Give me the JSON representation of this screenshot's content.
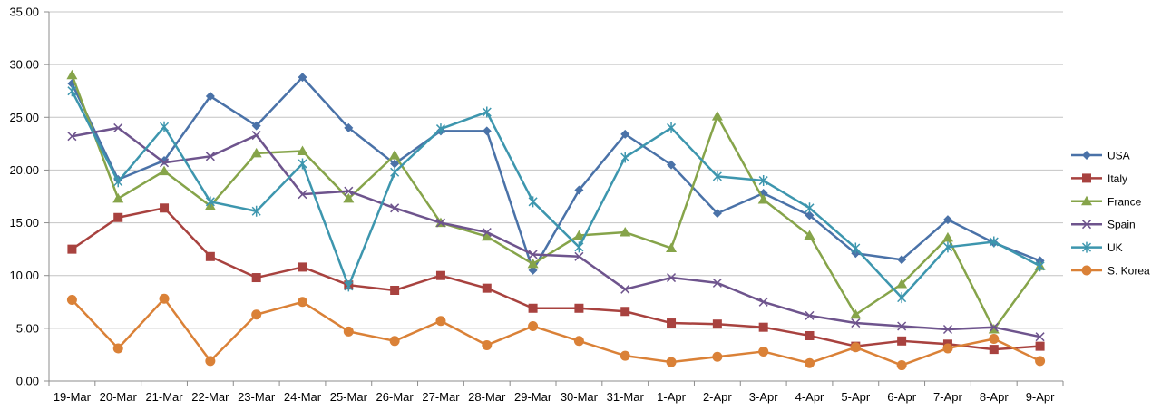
{
  "chart_data": {
    "type": "line",
    "title": "",
    "xlabel": "",
    "ylabel": "",
    "ylim": [
      0,
      35
    ],
    "y_ticks": [
      "0.00",
      "5.00",
      "10.00",
      "15.00",
      "20.00",
      "25.00",
      "30.00",
      "35.00"
    ],
    "grid": true,
    "legend_position": "right",
    "categories": [
      "19-Mar",
      "20-Mar",
      "21-Mar",
      "22-Mar",
      "23-Mar",
      "24-Mar",
      "25-Mar",
      "26-Mar",
      "27-Mar",
      "28-Mar",
      "29-Mar",
      "30-Mar",
      "31-Mar",
      "1-Apr",
      "2-Apr",
      "3-Apr",
      "4-Apr",
      "5-Apr",
      "6-Apr",
      "7-Apr",
      "8-Apr",
      "9-Apr"
    ],
    "series": [
      {
        "name": "USA",
        "color": "#4a72a8",
        "marker": "diamond",
        "values": [
          28.2,
          19.1,
          20.9,
          27.0,
          24.2,
          28.8,
          24.0,
          20.6,
          23.7,
          23.7,
          10.5,
          18.1,
          23.4,
          20.5,
          15.9,
          17.8,
          15.7,
          12.1,
          11.5,
          15.3,
          13.1,
          11.4
        ]
      },
      {
        "name": "Italy",
        "color": "#a8423f",
        "marker": "square",
        "values": [
          12.5,
          15.5,
          16.4,
          11.8,
          9.8,
          10.8,
          9.1,
          8.6,
          10.0,
          8.8,
          6.9,
          6.9,
          6.6,
          5.5,
          5.4,
          5.1,
          4.3,
          3.3,
          3.8,
          3.5,
          3.0,
          3.3
        ]
      },
      {
        "name": "France",
        "color": "#86a44a",
        "marker": "triangle",
        "values": [
          29.0,
          17.3,
          19.9,
          16.6,
          21.6,
          21.8,
          17.3,
          21.4,
          15.0,
          13.7,
          11.1,
          13.8,
          14.1,
          12.6,
          25.1,
          17.2,
          13.8,
          6.3,
          9.2,
          13.6,
          4.9,
          10.9
        ]
      },
      {
        "name": "Spain",
        "color": "#6e548d",
        "marker": "x",
        "values": [
          23.2,
          24.0,
          20.7,
          21.3,
          23.3,
          17.7,
          18.0,
          16.4,
          15.0,
          14.1,
          12.0,
          11.8,
          8.7,
          9.8,
          9.3,
          7.5,
          6.2,
          5.5,
          5.2,
          4.9,
          5.1,
          4.2
        ]
      },
      {
        "name": "UK",
        "color": "#3d96ae",
        "marker": "star",
        "values": [
          27.5,
          18.9,
          24.1,
          17.0,
          16.1,
          20.6,
          9.0,
          19.8,
          23.9,
          25.5,
          17.0,
          12.7,
          21.2,
          24.0,
          19.4,
          19.0,
          16.4,
          12.6,
          7.9,
          12.7,
          13.2,
          10.9
        ]
      },
      {
        "name": "S. Korea",
        "color": "#da8137",
        "marker": "circle",
        "values": [
          7.7,
          3.1,
          7.8,
          1.9,
          6.3,
          7.5,
          4.7,
          3.8,
          5.7,
          3.4,
          5.2,
          3.8,
          2.4,
          1.8,
          2.3,
          2.8,
          1.7,
          3.2,
          1.5,
          3.1,
          4.0,
          1.9
        ]
      }
    ]
  }
}
